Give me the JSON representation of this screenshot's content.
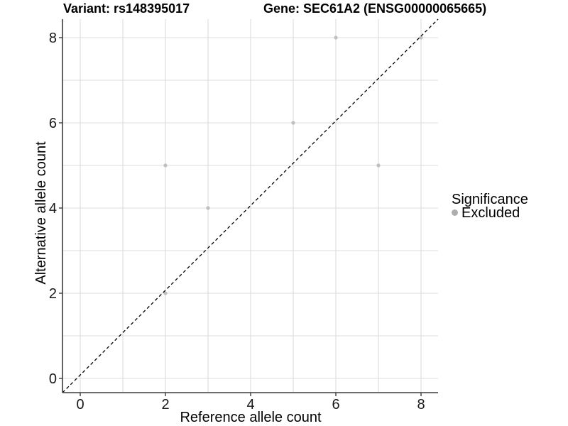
{
  "titles": {
    "left": "Variant: rs148395017",
    "right": "Gene: SEC61A2 (ENSG00000065665)"
  },
  "legend": {
    "title": "Significance",
    "position": "right",
    "items": [
      {
        "label": "Excluded",
        "color": "#aeaeae"
      }
    ]
  },
  "chart_data": {
    "type": "scatter",
    "title": "Variant: rs148395017 — Gene: SEC61A2 (ENSG00000065665)",
    "xlabel": "Reference allele count",
    "ylabel": "Alternative allele count",
    "xlim": [
      -0.4,
      8.4
    ],
    "ylim": [
      -0.4,
      8.4
    ],
    "x_ticks": [
      0,
      2,
      4,
      6,
      8
    ],
    "y_ticks": [
      0,
      2,
      4,
      6,
      8
    ],
    "grid": true,
    "grid_lines_x": [
      0,
      1,
      2,
      3,
      4,
      5,
      6,
      7,
      8
    ],
    "grid_lines_y": [
      0,
      1,
      2,
      3,
      4,
      5,
      6,
      7,
      8
    ],
    "legend_position": "right",
    "series": [
      {
        "name": "Excluded",
        "color": "#bfbfbf",
        "points": [
          [
            2,
            2
          ],
          [
            2,
            5
          ],
          [
            3,
            4
          ],
          [
            5,
            6
          ],
          [
            6,
            8
          ],
          [
            7,
            5
          ],
          [
            8,
            8
          ]
        ]
      }
    ],
    "identity_line": {
      "type": "dashed",
      "from": [
        -0.4,
        -0.4
      ],
      "to": [
        8.4,
        8.4
      ],
      "color": "#000000"
    }
  },
  "style": {
    "grid_color": "#dcdcdc",
    "axis_color": "#3d3d3d",
    "tick_label_color": "#191919",
    "background": "#ffffff"
  }
}
